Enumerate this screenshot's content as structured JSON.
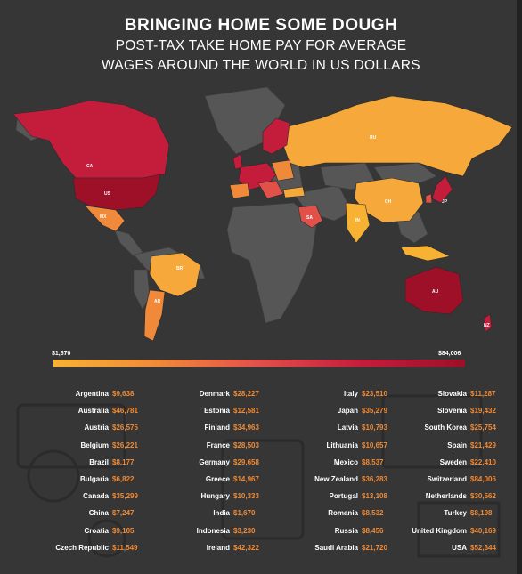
{
  "header": {
    "title": "BRINGING HOME SOME DOUGH",
    "subtitle_line1": "POST-TAX TAKE HOME PAY FOR AVERAGE",
    "subtitle_line2": "WAGES AROUND THE WORLD IN US DOLLARS"
  },
  "colors": {
    "background": "#363637",
    "land_no_data": "#565657",
    "low": "#f7b234",
    "mid_low": "#f08a3a",
    "mid": "#e2504a",
    "mid_high": "#c41d3c",
    "high": "#9d1027",
    "value_text": "#f08a34"
  },
  "chart_data": {
    "type": "table",
    "subtype": "choropleth map with value table",
    "scale": {
      "min_label": "$1,670",
      "max_label": "$84,006",
      "min": 1670,
      "max": 84006
    },
    "map_labels": [
      "CA",
      "US",
      "MX",
      "BR",
      "AR",
      "RU",
      "CH",
      "IN",
      "SA",
      "JP",
      "AU",
      "NZ"
    ],
    "columns": [
      [
        {
          "name": "Argentina",
          "value": "$9,638"
        },
        {
          "name": "Australia",
          "value": "$46,781"
        },
        {
          "name": "Austria",
          "value": "$26,575"
        },
        {
          "name": "Belgium",
          "value": "$26,221"
        },
        {
          "name": "Brazil",
          "value": "$8,177"
        },
        {
          "name": "Bulgaria",
          "value": "$6,822"
        },
        {
          "name": "Canada",
          "value": "$35,299"
        },
        {
          "name": "China",
          "value": "$7,247"
        },
        {
          "name": "Croatia",
          "value": "$9,105"
        },
        {
          "name": "Czech Republic",
          "value": "$11,549"
        }
      ],
      [
        {
          "name": "Denmark",
          "value": "$28,227"
        },
        {
          "name": "Estonia",
          "value": "$12,581"
        },
        {
          "name": "Finland",
          "value": "$34,963"
        },
        {
          "name": "France",
          "value": "$28,503"
        },
        {
          "name": "Germany",
          "value": "$29,658"
        },
        {
          "name": "Greece",
          "value": "$14,967"
        },
        {
          "name": "Hungary",
          "value": "$10,333"
        },
        {
          "name": "India",
          "value": "$1,670"
        },
        {
          "name": "Indonesia",
          "value": "$3,230"
        },
        {
          "name": "Ireland",
          "value": "$42,322"
        }
      ],
      [
        {
          "name": "Italy",
          "value": "$23,510"
        },
        {
          "name": "Japan",
          "value": "$35,279"
        },
        {
          "name": "Latvia",
          "value": "$10,793"
        },
        {
          "name": "Lithuania",
          "value": "$10,657"
        },
        {
          "name": "Mexico",
          "value": "$8,537"
        },
        {
          "name": "New Zealand",
          "value": "$36,283"
        },
        {
          "name": "Portugal",
          "value": "$13,108"
        },
        {
          "name": "Romania",
          "value": "$8,532"
        },
        {
          "name": "Russia",
          "value": "$8,456"
        },
        {
          "name": "Saudi Arabia",
          "value": "$21,720"
        }
      ],
      [
        {
          "name": "Slovakia",
          "value": "$11,287"
        },
        {
          "name": "Slovenia",
          "value": "$19,432"
        },
        {
          "name": "South Korea",
          "value": "$25,754"
        },
        {
          "name": "Spain",
          "value": "$21,429"
        },
        {
          "name": "Sweden",
          "value": "$22,410"
        },
        {
          "name": "Switzerland",
          "value": "$84,006"
        },
        {
          "name": "Netherlands",
          "value": "$30,562"
        },
        {
          "name": "Turkey",
          "value": "$8,198"
        },
        {
          "name": "United Kingdom",
          "value": "$40,169"
        },
        {
          "name": "USA",
          "value": "$52,344"
        }
      ]
    ]
  }
}
